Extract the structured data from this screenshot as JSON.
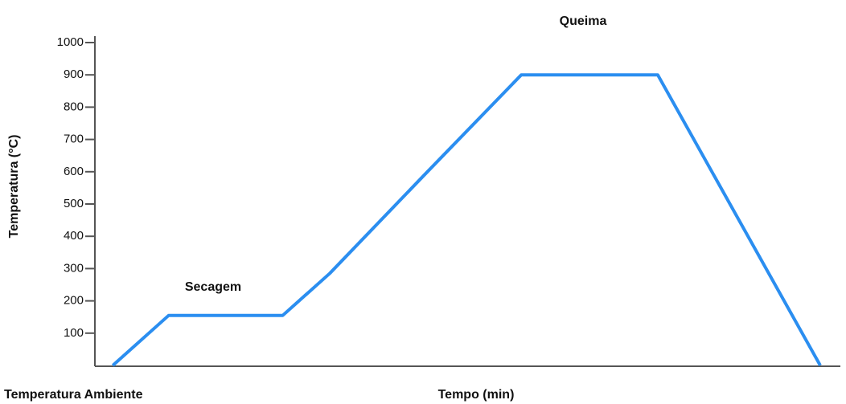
{
  "chart_data": {
    "type": "line",
    "y_label": "Temperatura (°C)",
    "x_label": "Tempo (min)",
    "annotations": [
      "Queima",
      "Secagem",
      "Temperatura Ambiente"
    ],
    "x": [
      2.4,
      9.9,
      25.2,
      31.5,
      44.4,
      57.2,
      75.5,
      97.3
    ],
    "series": [
      {
        "name": null,
        "color": "#2b8ef0",
        "values": [
          0,
          155,
          155,
          285,
          595,
          900,
          900,
          0
        ]
      }
    ],
    "xlim": [
      0,
      100
    ],
    "ylim": [
      0,
      1000
    ],
    "yticks": [
      100,
      200,
      300,
      400,
      500,
      600,
      700,
      800,
      900,
      1000
    ],
    "grid": false
  }
}
